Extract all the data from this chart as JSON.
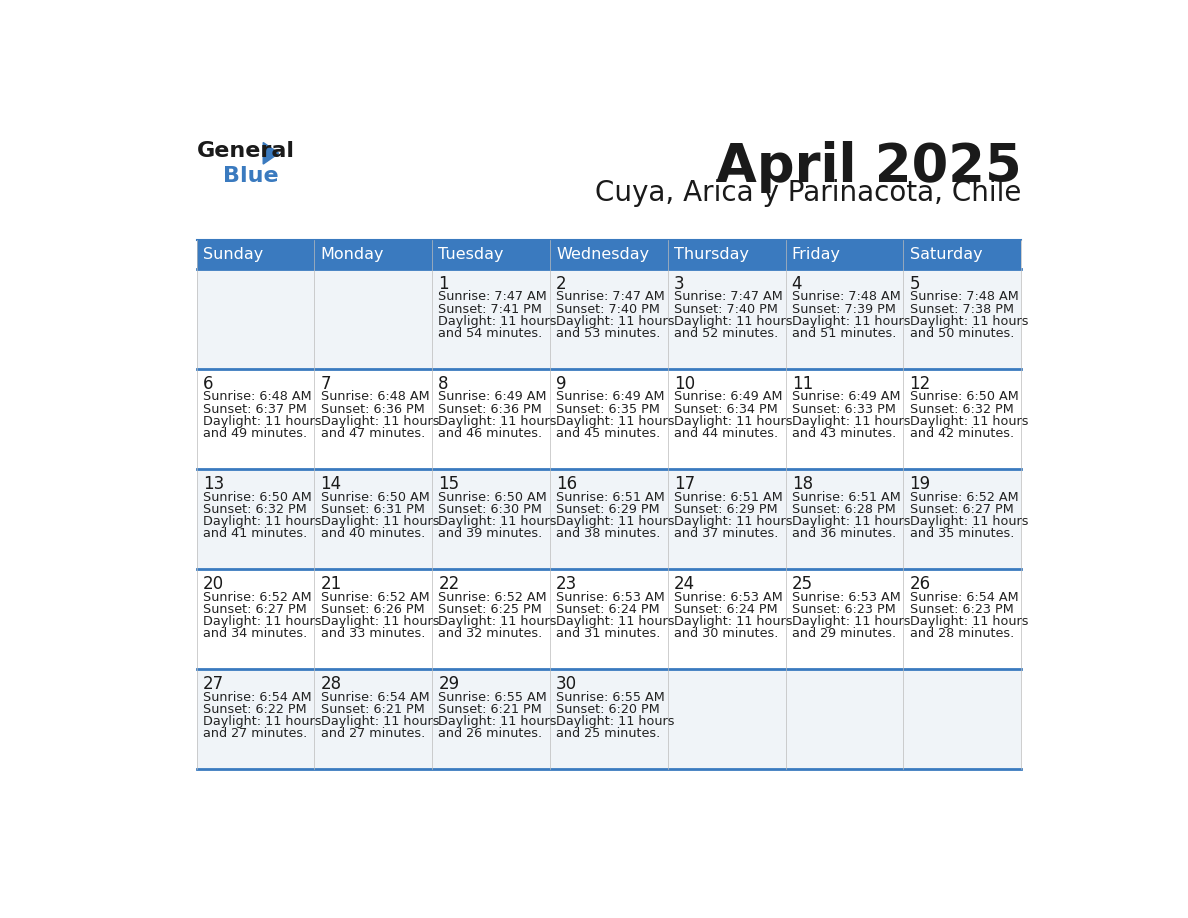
{
  "title": "April 2025",
  "subtitle": "Cuya, Arica y Parinacota, Chile",
  "header_bg": "#3a7abf",
  "header_text": "#ffffff",
  "cell_text": "#222222",
  "day_headers": [
    "Sunday",
    "Monday",
    "Tuesday",
    "Wednesday",
    "Thursday",
    "Friday",
    "Saturday"
  ],
  "weeks": [
    [
      {
        "day": "",
        "sunrise": "",
        "sunset": "",
        "daylight": ""
      },
      {
        "day": "",
        "sunrise": "",
        "sunset": "",
        "daylight": ""
      },
      {
        "day": "1",
        "sunrise": "7:47 AM",
        "sunset": "7:41 PM",
        "daylight": "11 hours and 54 minutes."
      },
      {
        "day": "2",
        "sunrise": "7:47 AM",
        "sunset": "7:40 PM",
        "daylight": "11 hours and 53 minutes."
      },
      {
        "day": "3",
        "sunrise": "7:47 AM",
        "sunset": "7:40 PM",
        "daylight": "11 hours and 52 minutes."
      },
      {
        "day": "4",
        "sunrise": "7:48 AM",
        "sunset": "7:39 PM",
        "daylight": "11 hours and 51 minutes."
      },
      {
        "day": "5",
        "sunrise": "7:48 AM",
        "sunset": "7:38 PM",
        "daylight": "11 hours and 50 minutes."
      }
    ],
    [
      {
        "day": "6",
        "sunrise": "6:48 AM",
        "sunset": "6:37 PM",
        "daylight": "11 hours and 49 minutes."
      },
      {
        "day": "7",
        "sunrise": "6:48 AM",
        "sunset": "6:36 PM",
        "daylight": "11 hours and 47 minutes."
      },
      {
        "day": "8",
        "sunrise": "6:49 AM",
        "sunset": "6:36 PM",
        "daylight": "11 hours and 46 minutes."
      },
      {
        "day": "9",
        "sunrise": "6:49 AM",
        "sunset": "6:35 PM",
        "daylight": "11 hours and 45 minutes."
      },
      {
        "day": "10",
        "sunrise": "6:49 AM",
        "sunset": "6:34 PM",
        "daylight": "11 hours and 44 minutes."
      },
      {
        "day": "11",
        "sunrise": "6:49 AM",
        "sunset": "6:33 PM",
        "daylight": "11 hours and 43 minutes."
      },
      {
        "day": "12",
        "sunrise": "6:50 AM",
        "sunset": "6:32 PM",
        "daylight": "11 hours and 42 minutes."
      }
    ],
    [
      {
        "day": "13",
        "sunrise": "6:50 AM",
        "sunset": "6:32 PM",
        "daylight": "11 hours and 41 minutes."
      },
      {
        "day": "14",
        "sunrise": "6:50 AM",
        "sunset": "6:31 PM",
        "daylight": "11 hours and 40 minutes."
      },
      {
        "day": "15",
        "sunrise": "6:50 AM",
        "sunset": "6:30 PM",
        "daylight": "11 hours and 39 minutes."
      },
      {
        "day": "16",
        "sunrise": "6:51 AM",
        "sunset": "6:29 PM",
        "daylight": "11 hours and 38 minutes."
      },
      {
        "day": "17",
        "sunrise": "6:51 AM",
        "sunset": "6:29 PM",
        "daylight": "11 hours and 37 minutes."
      },
      {
        "day": "18",
        "sunrise": "6:51 AM",
        "sunset": "6:28 PM",
        "daylight": "11 hours and 36 minutes."
      },
      {
        "day": "19",
        "sunrise": "6:52 AM",
        "sunset": "6:27 PM",
        "daylight": "11 hours and 35 minutes."
      }
    ],
    [
      {
        "day": "20",
        "sunrise": "6:52 AM",
        "sunset": "6:27 PM",
        "daylight": "11 hours and 34 minutes."
      },
      {
        "day": "21",
        "sunrise": "6:52 AM",
        "sunset": "6:26 PM",
        "daylight": "11 hours and 33 minutes."
      },
      {
        "day": "22",
        "sunrise": "6:52 AM",
        "sunset": "6:25 PM",
        "daylight": "11 hours and 32 minutes."
      },
      {
        "day": "23",
        "sunrise": "6:53 AM",
        "sunset": "6:24 PM",
        "daylight": "11 hours and 31 minutes."
      },
      {
        "day": "24",
        "sunrise": "6:53 AM",
        "sunset": "6:24 PM",
        "daylight": "11 hours and 30 minutes."
      },
      {
        "day": "25",
        "sunrise": "6:53 AM",
        "sunset": "6:23 PM",
        "daylight": "11 hours and 29 minutes."
      },
      {
        "day": "26",
        "sunrise": "6:54 AM",
        "sunset": "6:23 PM",
        "daylight": "11 hours and 28 minutes."
      }
    ],
    [
      {
        "day": "27",
        "sunrise": "6:54 AM",
        "sunset": "6:22 PM",
        "daylight": "11 hours and 27 minutes."
      },
      {
        "day": "28",
        "sunrise": "6:54 AM",
        "sunset": "6:21 PM",
        "daylight": "11 hours and 27 minutes."
      },
      {
        "day": "29",
        "sunrise": "6:55 AM",
        "sunset": "6:21 PM",
        "daylight": "11 hours and 26 minutes."
      },
      {
        "day": "30",
        "sunrise": "6:55 AM",
        "sunset": "6:20 PM",
        "daylight": "11 hours and 25 minutes."
      },
      {
        "day": "",
        "sunrise": "",
        "sunset": "",
        "daylight": ""
      },
      {
        "day": "",
        "sunrise": "",
        "sunset": "",
        "daylight": ""
      },
      {
        "day": "",
        "sunrise": "",
        "sunset": "",
        "daylight": ""
      }
    ]
  ],
  "logo_triangle_color": "#3a7abf"
}
